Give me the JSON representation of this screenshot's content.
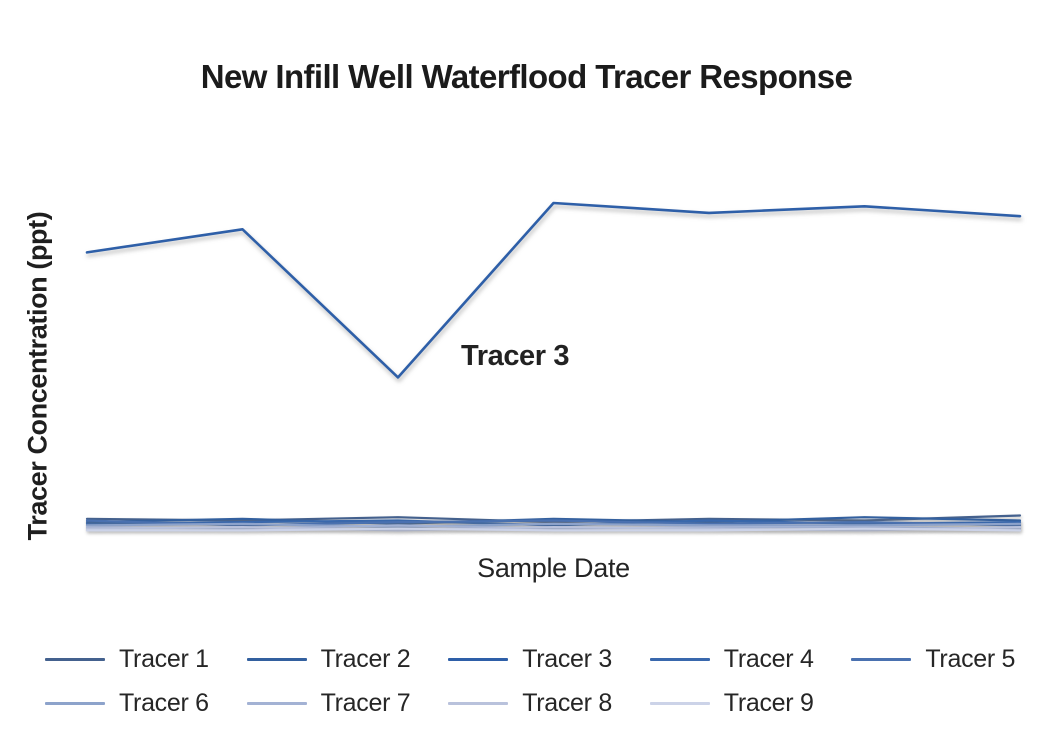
{
  "title": "New Infill Well Waterflood Tracer Response",
  "axes": {
    "y_label": "Tracer Concentration (ppt)",
    "x_label": "Sample Date"
  },
  "annotation": {
    "text": "Tracer 3"
  },
  "chart_data": {
    "type": "line",
    "title": "New Infill Well Waterflood Tracer Response",
    "xlabel": "Sample Date",
    "ylabel": "Tracer Concentration (ppt)",
    "x": [
      1,
      2,
      3,
      4,
      5,
      6,
      7
    ],
    "ylim": [
      0,
      110
    ],
    "grid": false,
    "axis_ticks_visible": false,
    "legend_position": "bottom",
    "annotation": "Tracer 3",
    "series": [
      {
        "name": "Tracer 1",
        "color": "#44618e",
        "values": [
          4.0,
          3.5,
          4.5,
          3.0,
          4.0,
          3.5,
          5.0
        ]
      },
      {
        "name": "Tracer 2",
        "color": "#33609f",
        "values": [
          3.0,
          4.0,
          2.5,
          4.0,
          3.0,
          4.5,
          3.5
        ]
      },
      {
        "name": "Tracer 3",
        "color": "#2e5fa8",
        "values": [
          85,
          92,
          47,
          100,
          97,
          99,
          96
        ]
      },
      {
        "name": "Tracer 4",
        "color": "#3968ad",
        "values": [
          2.5,
          3.0,
          3.5,
          2.0,
          3.5,
          2.5,
          3.0
        ]
      },
      {
        "name": "Tracer 5",
        "color": "#4a71b0",
        "values": [
          3.5,
          2.0,
          3.0,
          3.5,
          2.5,
          3.0,
          2.0
        ]
      },
      {
        "name": "Tracer 6",
        "color": "#8da3cb",
        "values": [
          2.0,
          2.5,
          1.5,
          2.5,
          2.0,
          2.0,
          2.5
        ]
      },
      {
        "name": "Tracer 7",
        "color": "#a3b2d4",
        "values": [
          1.5,
          1.0,
          2.0,
          1.0,
          1.5,
          1.5,
          1.0
        ]
      },
      {
        "name": "Tracer 8",
        "color": "#b9c2dc",
        "values": [
          1.0,
          1.5,
          0.5,
          1.5,
          1.0,
          0.5,
          1.5
        ]
      },
      {
        "name": "Tracer 9",
        "color": "#ccd3e8",
        "values": [
          0.5,
          0.5,
          1.0,
          0.5,
          0.5,
          1.0,
          0.5
        ]
      }
    ]
  }
}
